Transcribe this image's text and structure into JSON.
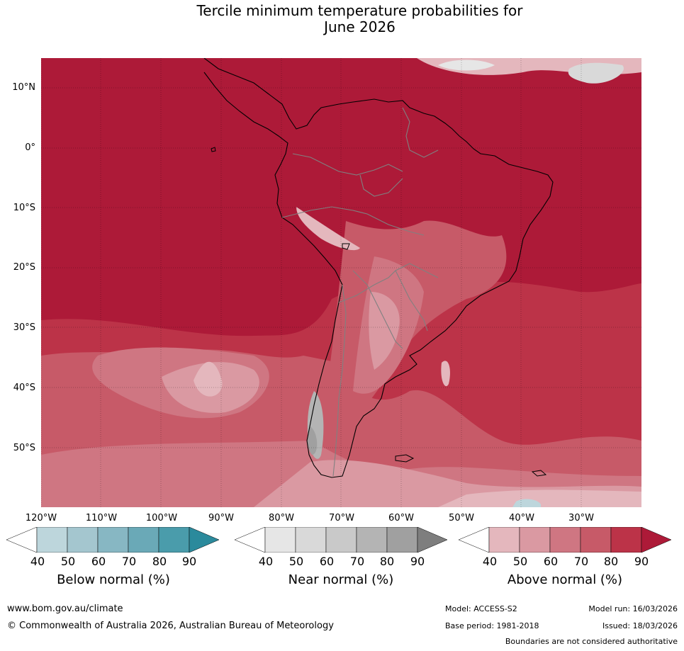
{
  "title": {
    "line1": "Tercile minimum temperature probabilities for",
    "line2": "June 2026"
  },
  "map": {
    "lat_ticks": [
      "10°N",
      "0°",
      "10°S",
      "20°S",
      "30°S",
      "40°S",
      "50°S"
    ],
    "lon_ticks": [
      "120°W",
      "110°W",
      "100°W",
      "90°W",
      "80°W",
      "70°W",
      "60°W",
      "50°W",
      "40°W",
      "30°W"
    ],
    "levels": [
      "40",
      "50",
      "60",
      "70",
      "80",
      "90"
    ]
  },
  "legends": [
    {
      "label": "Below normal (%)",
      "colors": [
        "#ffffff",
        "#bdd6dc",
        "#a4c6cf",
        "#87b7c3",
        "#6aa9b7",
        "#4a9cab",
        "#2b8a9c"
      ]
    },
    {
      "label": "Near normal (%)",
      "colors": [
        "#ffffff",
        "#e6e6e6",
        "#d9d9d9",
        "#c9c9c9",
        "#b4b4b4",
        "#a0a0a0",
        "#7e7e7e"
      ]
    },
    {
      "label": "Above normal (%)",
      "colors": [
        "#ffffff",
        "#e4b7bd",
        "#da99a2",
        "#cf7682",
        "#c75a68",
        "#bc3348",
        "#ad1a38"
      ]
    }
  ],
  "footer": {
    "url": "www.bom.gov.au/climate",
    "copyright": "© Commonwealth of Australia 2026, Australian Bureau of Meteorology",
    "model": "Model: ACCESS-S2",
    "model_run": "Model run: 16/03/2026",
    "base_period": "Base period: 1981-2018",
    "issued": "Issued: 18/03/2026",
    "disclaimer": "Boundaries are not considered authoritative"
  }
}
